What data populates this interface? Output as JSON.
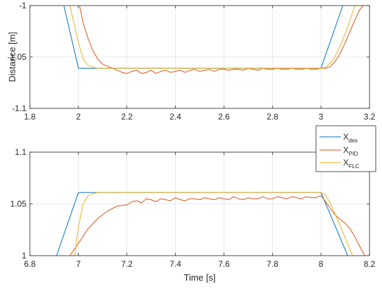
{
  "chart_data": [
    {
      "type": "line",
      "xlim": [
        1.8,
        3.2
      ],
      "ylim": [
        -1.1,
        -1
      ],
      "xticks": [
        1.8,
        2,
        2.2,
        2.4,
        2.6,
        2.8,
        3,
        3.2
      ],
      "yticks": [
        -1.1,
        -1.05,
        -1
      ],
      "xtick_labels": [
        "1.8",
        "2",
        "2.2",
        "2.4",
        "2.6",
        "2.8",
        "3",
        "3.2"
      ],
      "ytick_labels": [
        "-1.1",
        "-1.05",
        "-1"
      ],
      "xlabel": "",
      "ylabel": "Distance [m]",
      "grid": true,
      "series": [
        {
          "name": "X_des",
          "color": "#0072BD",
          "x": [
            1.94,
            2.0,
            3.0,
            3.09
          ],
          "y": [
            -1.0,
            -1.061,
            -1.061,
            -1.0
          ]
        },
        {
          "name": "X_PID",
          "color": "#D95319",
          "x": [
            2.005,
            2.02,
            2.04,
            2.06,
            2.08,
            2.1,
            2.12,
            2.14,
            2.16,
            2.18,
            2.2,
            2.22,
            2.24,
            2.26,
            2.28,
            2.3,
            2.32,
            2.34,
            2.36,
            2.38,
            2.4,
            2.42,
            2.44,
            2.46,
            2.48,
            2.5,
            2.52,
            2.54,
            2.56,
            2.58,
            2.6,
            2.62,
            2.64,
            2.66,
            2.68,
            2.7,
            2.72,
            2.74,
            2.76,
            2.78,
            2.8,
            2.82,
            2.84,
            2.86,
            2.88,
            2.9,
            2.92,
            2.94,
            2.96,
            2.98,
            3.0,
            3.02,
            3.04,
            3.06,
            3.08,
            3.1,
            3.12,
            3.14,
            3.16,
            3.18
          ],
          "y": [
            -1.0,
            -1.017,
            -1.032,
            -1.044,
            -1.052,
            -1.057,
            -1.059,
            -1.061,
            -1.063,
            -1.065,
            -1.066,
            -1.064,
            -1.063,
            -1.066,
            -1.065,
            -1.063,
            -1.066,
            -1.064,
            -1.063,
            -1.065,
            -1.064,
            -1.063,
            -1.065,
            -1.063,
            -1.062,
            -1.064,
            -1.063,
            -1.062,
            -1.064,
            -1.062,
            -1.062,
            -1.063,
            -1.062,
            -1.062,
            -1.063,
            -1.061,
            -1.062,
            -1.063,
            -1.061,
            -1.062,
            -1.062,
            -1.061,
            -1.062,
            -1.062,
            -1.061,
            -1.062,
            -1.062,
            -1.061,
            -1.062,
            -1.062,
            -1.061,
            -1.061,
            -1.059,
            -1.054,
            -1.046,
            -1.036,
            -1.025,
            -1.014,
            -1.004,
            -0.998
          ]
        },
        {
          "name": "X_FLC",
          "color": "#EDB120",
          "x": [
            1.965,
            2.0,
            2.02,
            2.04,
            2.06,
            2.08,
            2.1,
            3.0,
            3.02,
            3.05,
            3.08,
            3.11,
            3.14
          ],
          "y": [
            -1.0,
            -1.036,
            -1.052,
            -1.058,
            -1.06,
            -1.061,
            -1.061,
            -1.061,
            -1.06,
            -1.053,
            -1.039,
            -1.021,
            -1.0
          ]
        }
      ]
    },
    {
      "type": "line",
      "xlim": [
        6.8,
        8.2
      ],
      "ylim": [
        1,
        1.1
      ],
      "xticks": [
        6.8,
        7,
        7.2,
        7.4,
        7.6,
        7.8,
        8,
        8.2
      ],
      "yticks": [
        1,
        1.05,
        1.1
      ],
      "xtick_labels": [
        "6.8",
        "7",
        "7.2",
        "7.4",
        "7.6",
        "7.8",
        "8",
        "8.2"
      ],
      "ytick_labels": [
        "1",
        "1.05",
        "1.1"
      ],
      "xlabel": "Time [s]",
      "ylabel": "",
      "grid": true,
      "series": [
        {
          "name": "X_des",
          "color": "#0072BD",
          "x": [
            6.91,
            7.0,
            8.0,
            8.11
          ],
          "y": [
            1.0,
            1.061,
            1.061,
            1.0
          ]
        },
        {
          "name": "X_PID",
          "color": "#D95319",
          "x": [
            6.965,
            7.0,
            7.04,
            7.08,
            7.12,
            7.16,
            7.2,
            7.22,
            7.24,
            7.26,
            7.28,
            7.3,
            7.32,
            7.34,
            7.36,
            7.38,
            7.4,
            7.42,
            7.44,
            7.46,
            7.48,
            7.5,
            7.52,
            7.54,
            7.56,
            7.58,
            7.6,
            7.62,
            7.64,
            7.66,
            7.68,
            7.7,
            7.72,
            7.74,
            7.76,
            7.78,
            7.8,
            7.82,
            7.84,
            7.86,
            7.88,
            7.9,
            7.92,
            7.94,
            7.96,
            7.98,
            8.0,
            8.02,
            8.04,
            8.06,
            8.08,
            8.1,
            8.12,
            8.14,
            8.16,
            8.18
          ],
          "y": [
            1.0,
            1.012,
            1.026,
            1.036,
            1.043,
            1.048,
            1.049,
            1.052,
            1.053,
            1.051,
            1.055,
            1.054,
            1.052,
            1.055,
            1.054,
            1.053,
            1.056,
            1.054,
            1.053,
            1.055,
            1.055,
            1.054,
            1.056,
            1.055,
            1.054,
            1.056,
            1.055,
            1.054,
            1.057,
            1.055,
            1.054,
            1.056,
            1.055,
            1.055,
            1.057,
            1.055,
            1.055,
            1.057,
            1.056,
            1.055,
            1.057,
            1.056,
            1.055,
            1.057,
            1.056,
            1.056,
            1.058,
            1.052,
            1.045,
            1.039,
            1.035,
            1.031,
            1.026,
            1.018,
            1.009,
            1.0
          ]
        },
        {
          "name": "X_FLC",
          "color": "#EDB120",
          "x": [
            6.985,
            7.0,
            7.02,
            7.04,
            7.06,
            7.08,
            8.0,
            8.02,
            8.04,
            8.07,
            8.1,
            8.13
          ],
          "y": [
            1.0,
            1.028,
            1.05,
            1.058,
            1.06,
            1.061,
            1.061,
            1.058,
            1.05,
            1.034,
            1.017,
            1.0
          ]
        }
      ]
    }
  ],
  "legend": {
    "entries": [
      {
        "base": "X",
        "sub": "des",
        "color": "#0072BD"
      },
      {
        "base": "X",
        "sub": "PID",
        "color": "#D95319"
      },
      {
        "base": "X",
        "sub": "FLC",
        "color": "#EDB120"
      }
    ]
  }
}
